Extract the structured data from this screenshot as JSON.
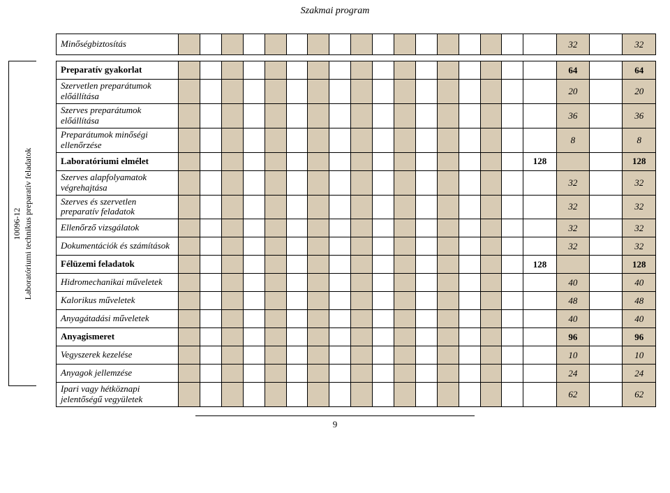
{
  "header": "Szakmai program",
  "sideLabel": {
    "code": "10096-12",
    "text": "Laboratóriumi technikus preparatív feladatok"
  },
  "topRow": {
    "label": "Minőségbiztosítás",
    "v1": "32",
    "v2": "32"
  },
  "rows": [
    {
      "label": "Preparatív gyakorlat",
      "bold": true,
      "italic": false,
      "v1": "64",
      "v2": "64",
      "boldnum": true
    },
    {
      "label": "Szervetlen preparátumok előállítása",
      "bold": false,
      "italic": true,
      "v1": "20",
      "v2": "20"
    },
    {
      "label": "Szerves preparátumok előállítása",
      "bold": false,
      "italic": true,
      "v1": "36",
      "v2": "36"
    },
    {
      "label": "Preparátumok minőségi ellenőrzése",
      "bold": false,
      "italic": true,
      "v1": "8",
      "v2": "8"
    },
    {
      "label": "Laboratóriumi elmélet",
      "bold": true,
      "italic": false,
      "v1": "128",
      "v2": "128",
      "boldnum": true,
      "v1shift": -1
    },
    {
      "label": "Szerves alapfolyamatok végrehajtása",
      "bold": false,
      "italic": true,
      "v1": "32",
      "v2": "32"
    },
    {
      "label": "Szerves és szervetlen preparatív feladatok",
      "bold": false,
      "italic": true,
      "v1": "32",
      "v2": "32"
    },
    {
      "label": "Ellenőrző vizsgálatok",
      "bold": false,
      "italic": true,
      "v1": "32",
      "v2": "32"
    },
    {
      "label": "Dokumentációk és számítások",
      "bold": false,
      "italic": true,
      "v1": "32",
      "v2": "32"
    },
    {
      "label": "Félüzemi feladatok",
      "bold": true,
      "italic": false,
      "v1": "128",
      "v2": "128",
      "boldnum": true,
      "v1shift": -1
    },
    {
      "label": "Hidromechanikai műveletek",
      "bold": false,
      "italic": true,
      "v1": "40",
      "v2": "40"
    },
    {
      "label": "Kalorikus műveletek",
      "bold": false,
      "italic": true,
      "v1": "48",
      "v2": "48"
    },
    {
      "label": "Anyagátadási műveletek",
      "bold": false,
      "italic": true,
      "v1": "40",
      "v2": "40"
    },
    {
      "label": "Anyagismeret",
      "bold": true,
      "italic": false,
      "v1": "96",
      "v2": "96",
      "boldnum": true
    },
    {
      "label": "Vegyszerek kezelése",
      "bold": false,
      "italic": true,
      "v1": "10",
      "v2": "10"
    },
    {
      "label": "Anyagok jellemzése",
      "bold": false,
      "italic": true,
      "v1": "24",
      "v2": "24"
    },
    {
      "label": "Ipari vagy hétköznapi jelentőségű vegyületek",
      "bold": false,
      "italic": true,
      "v1": "62",
      "v2": "62"
    }
  ],
  "pageNumber": "9",
  "shadeColor": "#d8cbb4"
}
